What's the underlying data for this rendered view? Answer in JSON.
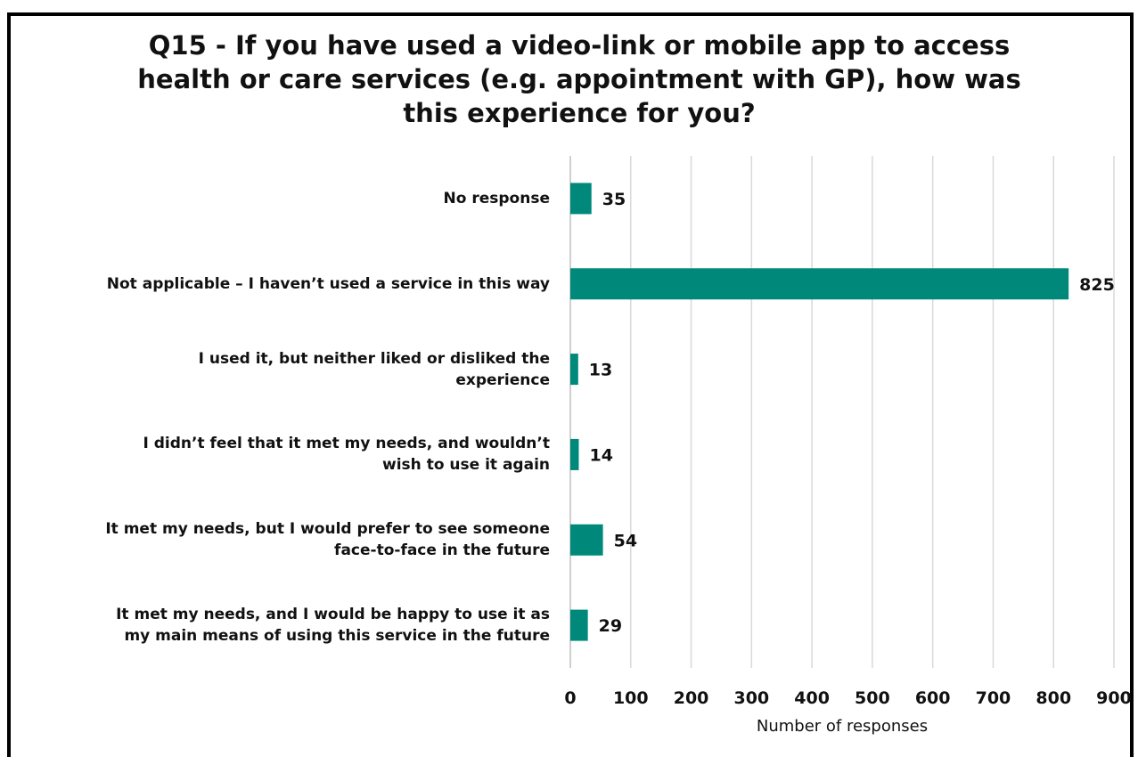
{
  "chart_data": {
    "type": "bar",
    "orientation": "horizontal",
    "title": "Q15 - If you have used a video-link or mobile app to access health or care services (e.g. appointment with GP), how was this experience for you?",
    "title_lines": [
      "Q15 - If you have used a video-link or mobile app to access",
      "health or care services (e.g. appointment with GP), how was",
      "this experience for you?"
    ],
    "categories": [
      [
        "No response"
      ],
      [
        "Not applicable – I haven’t used a service in this way"
      ],
      [
        "I used it, but neither liked or disliked the",
        "experience"
      ],
      [
        "I didn’t feel that it met my needs, and wouldn’t",
        "wish to use it again"
      ],
      [
        "It met my needs, but I would prefer to see someone",
        "face-to-face in the future"
      ],
      [
        "It met my needs, and I would be happy to use it as",
        "my main means of using this service in the future"
      ]
    ],
    "values": [
      35,
      825,
      13,
      14,
      54,
      29
    ],
    "data_labels": [
      "35",
      "825",
      "13",
      "14",
      "54",
      "29"
    ],
    "xlabel": "Number of responses",
    "ylabel": "",
    "xlim": [
      0,
      900
    ],
    "xticks": [
      0,
      100,
      200,
      300,
      400,
      500,
      600,
      700,
      800,
      900
    ],
    "grid": true,
    "legend": "none",
    "colors": {
      "bar": "#00897b",
      "grid": "#d9d9d9",
      "text": "#111111"
    }
  }
}
